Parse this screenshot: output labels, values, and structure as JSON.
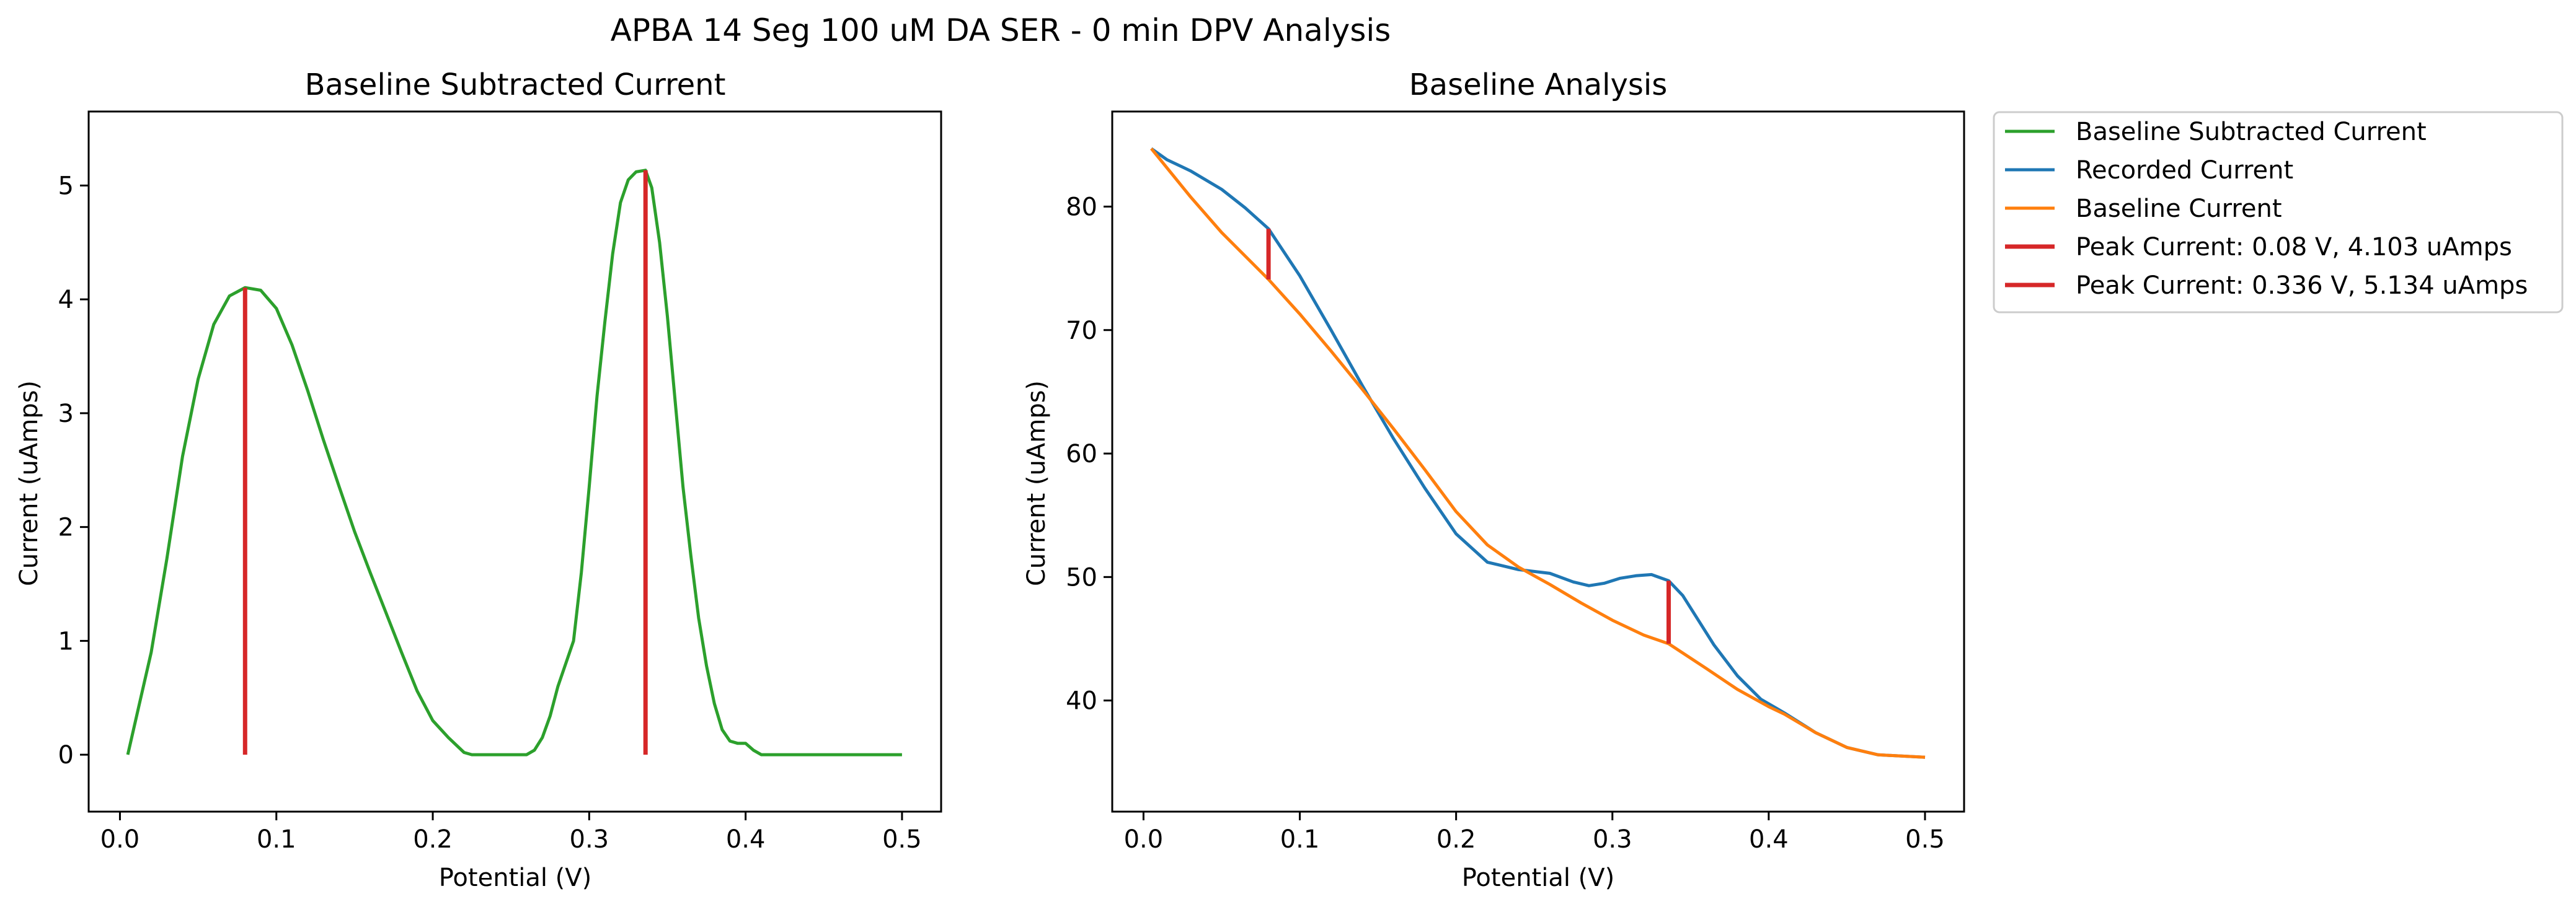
{
  "figure": {
    "suptitle": "APBA 14 Seg 100 uM DA SER - 0 min DPV Analysis"
  },
  "colors": {
    "baseline_subtracted": "#2ca02c",
    "recorded": "#1f77b4",
    "baseline": "#ff7f0e",
    "peak": "#d62728"
  },
  "chart_data": [
    {
      "type": "line",
      "title": "Baseline Subtracted Current",
      "xlabel": "Potential (V)",
      "ylabel": "Current (uAmps)",
      "xlim": [
        -0.02,
        0.525
      ],
      "ylim": [
        -0.5,
        5.65
      ],
      "xticks": [
        0.0,
        0.1,
        0.2,
        0.3,
        0.4,
        0.5
      ],
      "xticklabels": [
        "0.0",
        "0.1",
        "0.2",
        "0.3",
        "0.4",
        "0.5"
      ],
      "yticks": [
        0,
        1,
        2,
        3,
        4,
        5
      ],
      "yticklabels": [
        "0",
        "1",
        "2",
        "3",
        "4",
        "5"
      ],
      "series": [
        {
          "name": "Baseline Subtracted Current",
          "color": "#2ca02c",
          "x": [
            0.005,
            0.012,
            0.02,
            0.03,
            0.04,
            0.05,
            0.06,
            0.07,
            0.08,
            0.09,
            0.1,
            0.11,
            0.12,
            0.13,
            0.14,
            0.15,
            0.16,
            0.17,
            0.18,
            0.19,
            0.2,
            0.21,
            0.22,
            0.225,
            0.23,
            0.24,
            0.25,
            0.26,
            0.265,
            0.27,
            0.275,
            0.28,
            0.29,
            0.295,
            0.3,
            0.305,
            0.31,
            0.315,
            0.32,
            0.325,
            0.33,
            0.336,
            0.34,
            0.345,
            0.35,
            0.355,
            0.36,
            0.365,
            0.37,
            0.375,
            0.38,
            0.385,
            0.39,
            0.395,
            0.4,
            0.405,
            0.41,
            0.415,
            0.42,
            0.45,
            0.5
          ],
          "y": [
            0.0,
            0.42,
            0.9,
            1.72,
            2.62,
            3.3,
            3.78,
            4.03,
            4.103,
            4.08,
            3.92,
            3.6,
            3.2,
            2.77,
            2.36,
            1.96,
            1.6,
            1.25,
            0.9,
            0.56,
            0.3,
            0.15,
            0.02,
            0.0,
            0.0,
            0.0,
            0.0,
            0.0,
            0.04,
            0.15,
            0.34,
            0.6,
            1.0,
            1.6,
            2.35,
            3.15,
            3.8,
            4.4,
            4.85,
            5.05,
            5.12,
            5.134,
            4.98,
            4.5,
            3.85,
            3.1,
            2.35,
            1.75,
            1.2,
            0.78,
            0.45,
            0.22,
            0.12,
            0.1,
            0.1,
            0.04,
            0.0,
            0.0,
            0.0,
            0.0,
            0.0
          ]
        },
        {
          "name": "Peak Current: 0.08 V, 4.103 uAmps",
          "color": "#d62728",
          "x": [
            0.08,
            0.08
          ],
          "y": [
            0.0,
            4.103
          ]
        },
        {
          "name": "Peak Current: 0.336 V, 5.134 uAmps",
          "color": "#d62728",
          "x": [
            0.336,
            0.336
          ],
          "y": [
            0.0,
            5.134
          ]
        }
      ]
    },
    {
      "type": "line",
      "title": "Baseline Analysis",
      "xlabel": "Potential (V)",
      "ylabel": "Current (uAmps)",
      "xlim": [
        -0.02,
        0.525
      ],
      "ylim": [
        31.0,
        87.7
      ],
      "xticks": [
        0.0,
        0.1,
        0.2,
        0.3,
        0.4,
        0.5
      ],
      "xticklabels": [
        "0.0",
        "0.1",
        "0.2",
        "0.3",
        "0.4",
        "0.5"
      ],
      "yticks": [
        40,
        50,
        60,
        70,
        80
      ],
      "yticklabels": [
        "40",
        "50",
        "60",
        "70",
        "80"
      ],
      "legend": "outside-right-top",
      "series": [
        {
          "name": "Recorded Current",
          "color": "#1f77b4",
          "x": [
            0.005,
            0.015,
            0.03,
            0.05,
            0.065,
            0.08,
            0.1,
            0.12,
            0.14,
            0.16,
            0.18,
            0.2,
            0.22,
            0.24,
            0.26,
            0.275,
            0.285,
            0.295,
            0.305,
            0.315,
            0.325,
            0.336,
            0.345,
            0.355,
            0.365,
            0.38,
            0.395,
            0.41,
            0.43,
            0.45,
            0.47,
            0.5
          ],
          "y": [
            84.7,
            83.8,
            82.9,
            81.4,
            79.9,
            78.2,
            74.4,
            70.0,
            65.5,
            61.2,
            57.2,
            53.5,
            51.2,
            50.6,
            50.3,
            49.6,
            49.3,
            49.5,
            49.9,
            50.1,
            50.2,
            49.7,
            48.5,
            46.5,
            44.5,
            42.0,
            40.1,
            39.0,
            37.4,
            36.2,
            35.6,
            35.4
          ]
        },
        {
          "name": "Baseline Current",
          "color": "#ff7f0e",
          "x": [
            0.005,
            0.03,
            0.05,
            0.08,
            0.1,
            0.12,
            0.14,
            0.16,
            0.18,
            0.2,
            0.22,
            0.24,
            0.26,
            0.28,
            0.3,
            0.32,
            0.336,
            0.36,
            0.38,
            0.4,
            0.41,
            0.43,
            0.45,
            0.47,
            0.5
          ],
          "y": [
            84.7,
            80.8,
            77.9,
            74.1,
            71.3,
            68.3,
            65.2,
            62.0,
            58.7,
            55.3,
            52.6,
            50.8,
            49.4,
            47.9,
            46.5,
            45.3,
            44.6,
            42.6,
            40.9,
            39.5,
            38.9,
            37.4,
            36.2,
            35.6,
            35.4
          ]
        },
        {
          "name": "Peak Current: 0.08 V, 4.103 uAmps",
          "color": "#d62728",
          "x": [
            0.08,
            0.08
          ],
          "y": [
            74.1,
            78.2
          ]
        },
        {
          "name": "Peak Current: 0.336 V, 5.134 uAmps",
          "color": "#d62728",
          "x": [
            0.336,
            0.336
          ],
          "y": [
            44.6,
            49.7
          ]
        }
      ]
    }
  ],
  "legend": {
    "entries": [
      {
        "label": "Baseline Subtracted Current",
        "color": "#2ca02c"
      },
      {
        "label": "Recorded Current",
        "color": "#1f77b4"
      },
      {
        "label": "Baseline Current",
        "color": "#ff7f0e"
      },
      {
        "label": "Peak Current: 0.08 V, 4.103 uAmps",
        "color": "#d62728"
      },
      {
        "label": "Peak Current: 0.336 V, 5.134 uAmps",
        "color": "#d62728"
      }
    ]
  }
}
